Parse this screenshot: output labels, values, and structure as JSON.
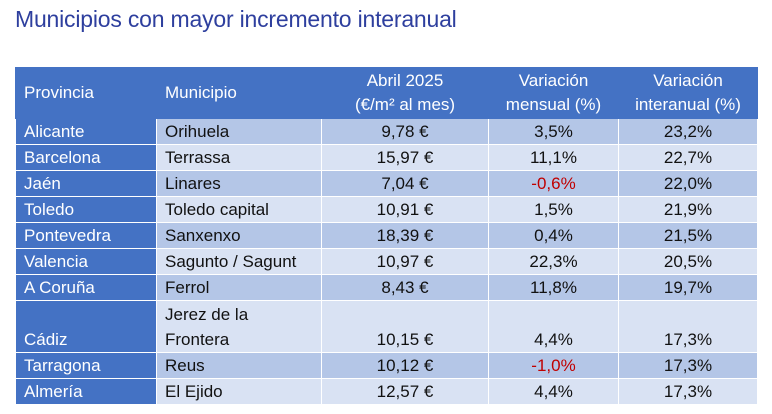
{
  "title": "Municipios con mayor incremento interanual",
  "table": {
    "headers": {
      "provincia": "Provincia",
      "municipio": "Municipio",
      "precio_line1": "Abril 2025",
      "precio_line2": "(€/m² al mes)",
      "mensual_line1": "Variación",
      "mensual_line2": "mensual (%)",
      "interanual_line1": "Variación",
      "interanual_line2": "interanual (%)"
    },
    "rows": [
      {
        "provincia": "Alicante",
        "municipio": "Orihuela",
        "precio": "9,78 €",
        "mensual": "3,5%",
        "interanual": "23,2%"
      },
      {
        "provincia": "Barcelona",
        "municipio": "Terrassa",
        "precio": "15,97 €",
        "mensual": "11,1%",
        "interanual": "22,7%"
      },
      {
        "provincia": "Jaén",
        "municipio": "Linares",
        "precio": "7,04 €",
        "mensual": "-0,6%",
        "interanual": "22,0%"
      },
      {
        "provincia": "Toledo",
        "municipio": "Toledo capital",
        "precio": "10,91 €",
        "mensual": "1,5%",
        "interanual": "21,9%"
      },
      {
        "provincia": "Pontevedra",
        "municipio": "Sanxenxo",
        "precio": "18,39 €",
        "mensual": "0,4%",
        "interanual": "21,5%"
      },
      {
        "provincia": "Valencia",
        "municipio": "Sagunto / Sagunt",
        "precio": "10,97 €",
        "mensual": "22,3%",
        "interanual": "20,5%"
      },
      {
        "provincia": "A Coruña",
        "municipio": "Ferrol",
        "precio": "8,43 €",
        "mensual": "11,8%",
        "interanual": "19,7%"
      },
      {
        "provincia": "Cádiz",
        "municipio_line1": "Jerez de la",
        "municipio_line2": "Frontera",
        "precio": "10,15 €",
        "mensual": "4,4%",
        "interanual": "17,3%"
      },
      {
        "provincia": "Tarragona",
        "municipio": "Reus",
        "precio": "10,12 €",
        "mensual": "-1,0%",
        "interanual": "17,3%"
      },
      {
        "provincia": "Almería",
        "municipio": "El Ejido",
        "precio": "12,57 €",
        "mensual": "4,4%",
        "interanual": "17,3%"
      }
    ]
  },
  "colors": {
    "title": "#2e3f9e",
    "header_bg": "#4472c4",
    "row_odd": "#b4c6e7",
    "row_even": "#d9e2f3",
    "negative": "#c00000"
  }
}
